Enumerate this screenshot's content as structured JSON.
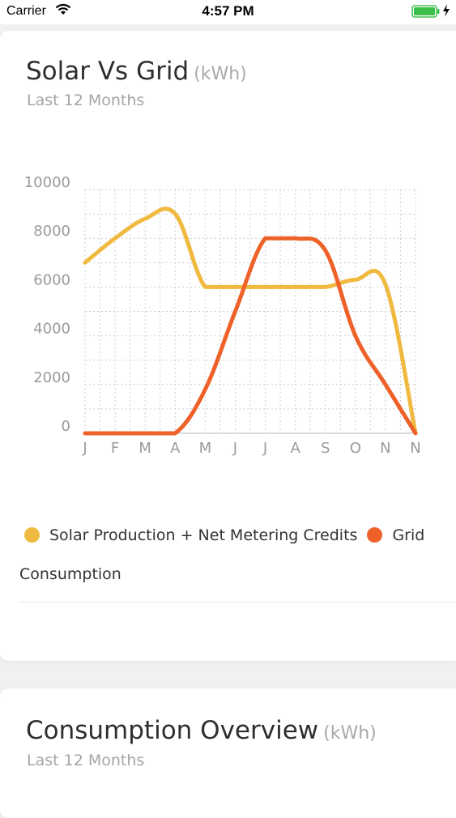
{
  "status_bar": {
    "carrier": "Carrier",
    "time": "4:57 PM"
  },
  "cards": [
    {
      "title": "Solar Vs Grid",
      "unit": "(kWh)",
      "subtitle": "Last 12 Months"
    },
    {
      "title": "Consumption Overview",
      "unit": "(kWh)",
      "subtitle": "Last 12 Months"
    }
  ],
  "legend": {
    "items": [
      {
        "label": "Solar Production + Net Metering Credits",
        "color": "#f0b940"
      },
      {
        "label": "Grid",
        "color": "#ee6128"
      }
    ],
    "wrapped_text": "Consumption"
  },
  "chart_data": {
    "type": "line",
    "title": "Solar Vs Grid (kWh)",
    "subtitle": "Last 12 Months",
    "categories": [
      "J",
      "F",
      "M",
      "A",
      "M",
      "J",
      "J",
      "A",
      "S",
      "O",
      "N",
      "N"
    ],
    "ylim": [
      0,
      10000
    ],
    "yticks": [
      0,
      2000,
      4000,
      6000,
      8000,
      10000
    ],
    "grid": true,
    "legend_position": "bottom",
    "series": [
      {
        "name": "Solar Production + Net Metering Credits",
        "color": "#f0b940",
        "values": [
          7000,
          8000,
          8800,
          9000,
          6000,
          6000,
          6000,
          6000,
          6000,
          6300,
          6100,
          0
        ]
      },
      {
        "name": "Grid Consumption",
        "color": "#ee6128",
        "values": [
          0,
          0,
          0,
          0,
          1800,
          5000,
          8000,
          8000,
          7500,
          4000,
          2000,
          0
        ]
      }
    ]
  }
}
